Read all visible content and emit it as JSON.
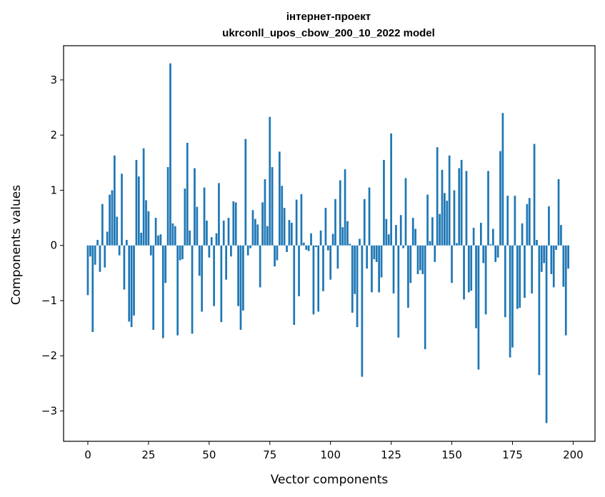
{
  "chart_data": {
    "type": "bar",
    "title_line1": "інтернет-проект",
    "title_line2": "ukrconll_upos_cbow_200_10_2022 model",
    "xlabel": "Vector components",
    "ylabel": "Components values",
    "xlim": [
      -10,
      209
    ],
    "ylim": [
      -3.55,
      3.62
    ],
    "xticks": [
      0,
      25,
      50,
      75,
      100,
      125,
      150,
      175,
      200
    ],
    "yticks": [
      -3,
      -2,
      -1,
      0,
      1,
      2,
      3
    ],
    "bar_color": "#1f77b4",
    "grid": false,
    "values": [
      -0.9,
      -0.2,
      -1.57,
      -0.35,
      0.1,
      -0.48,
      0.75,
      -0.4,
      0.25,
      0.92,
      1.0,
      1.63,
      0.52,
      -0.18,
      1.3,
      -0.8,
      0.1,
      -1.38,
      -1.48,
      -1.27,
      1.55,
      1.25,
      0.23,
      1.76,
      0.82,
      0.62,
      -0.18,
      -1.53,
      0.5,
      0.18,
      0.2,
      -1.68,
      -0.68,
      1.42,
      3.3,
      0.4,
      0.35,
      -1.63,
      -0.27,
      -0.25,
      1.03,
      1.86,
      0.27,
      -1.6,
      1.4,
      0.7,
      -0.55,
      -1.2,
      1.05,
      0.45,
      -0.22,
      0.15,
      -1.1,
      0.22,
      1.13,
      -1.39,
      0.45,
      -0.62,
      0.5,
      -0.2,
      0.8,
      0.78,
      -1.1,
      -1.53,
      -1.18,
      1.93,
      -0.18,
      -0.05,
      0.64,
      0.48,
      0.38,
      -0.76,
      0.78,
      1.2,
      0.35,
      2.33,
      1.42,
      -0.38,
      -0.27,
      1.7,
      1.08,
      0.68,
      -0.12,
      0.46,
      0.41,
      -1.44,
      0.83,
      -0.92,
      0.93,
      0.05,
      -0.08,
      -0.1,
      0.22,
      -1.25,
      -0.03,
      -1.2,
      0.27,
      -0.83,
      0.68,
      -0.09,
      -0.62,
      0.21,
      0.84,
      -0.42,
      1.18,
      0.33,
      1.38,
      0.44,
      0.03,
      -1.22,
      -0.88,
      -1.48,
      0.12,
      -2.38,
      0.84,
      -0.42,
      1.05,
      -0.85,
      -0.25,
      -0.3,
      -0.85,
      -0.58,
      1.55,
      0.48,
      0.2,
      2.03,
      -0.87,
      0.37,
      -1.67,
      0.55,
      -0.05,
      1.22,
      -1.13,
      -0.68,
      0.5,
      0.3,
      -0.52,
      -0.45,
      -0.52,
      -1.88,
      0.92,
      0.08,
      0.51,
      -0.3,
      1.78,
      0.57,
      1.37,
      0.95,
      0.81,
      1.63,
      -0.68,
      1.0,
      0.04,
      1.4,
      1.55,
      -0.98,
      1.35,
      -0.85,
      -0.82,
      0.32,
      -1.5,
      -2.25,
      0.41,
      -0.32,
      -1.25,
      1.35,
      0.02,
      0.3,
      -0.3,
      -0.22,
      1.71,
      2.4,
      -1.3,
      0.9,
      -2.03,
      -1.85,
      0.9,
      -1.15,
      -1.13,
      0.4,
      -0.95,
      0.75,
      0.86,
      -0.87,
      1.84,
      0.1,
      -2.35,
      -0.48,
      -0.32,
      -3.22,
      0.71,
      -0.52,
      -0.76,
      -0.08,
      1.2,
      0.37,
      -0.75,
      -1.63,
      -0.42
    ]
  }
}
